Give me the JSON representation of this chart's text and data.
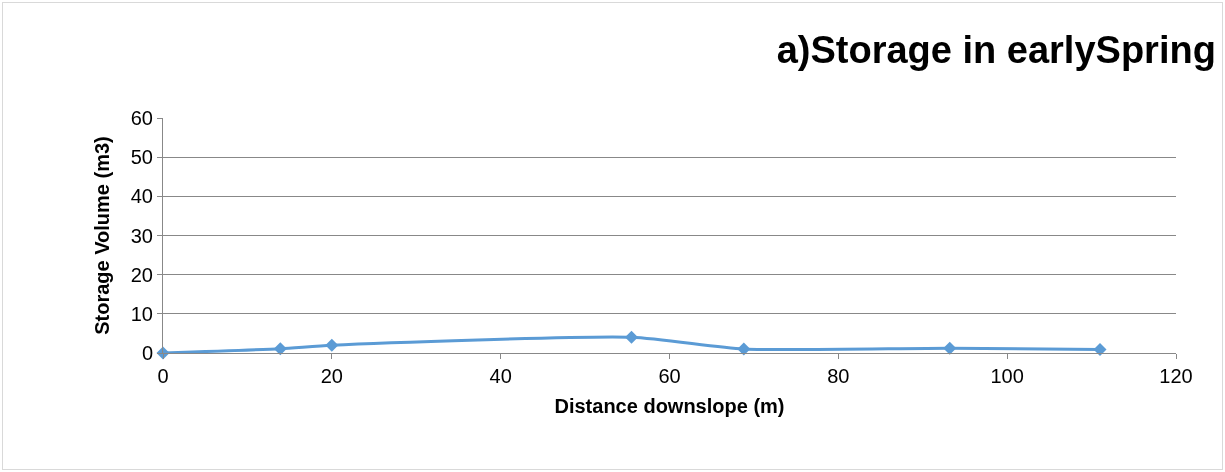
{
  "chart_data": {
    "type": "line",
    "title": "a)Storage in earlySpring",
    "xlabel": "Distance downslope (m)",
    "ylabel": "Storage Volume (m3)",
    "x": [
      0,
      13.9,
      20,
      55.5,
      68.8,
      93.2,
      111
    ],
    "series": [
      {
        "color": "#5b9bd5",
        "values": [
          0,
          1.1,
          2,
          4,
          1,
          1.2,
          0.9
        ]
      }
    ],
    "xlim": [
      0,
      120
    ],
    "xticks": [
      0,
      20,
      40,
      60,
      80,
      100,
      120
    ],
    "ylim": [
      0,
      60
    ],
    "yticks": [
      0,
      10,
      20,
      30,
      40,
      50,
      60
    ],
    "grid": "y",
    "legend": false,
    "marker": "diamond",
    "line_style": "solid"
  }
}
